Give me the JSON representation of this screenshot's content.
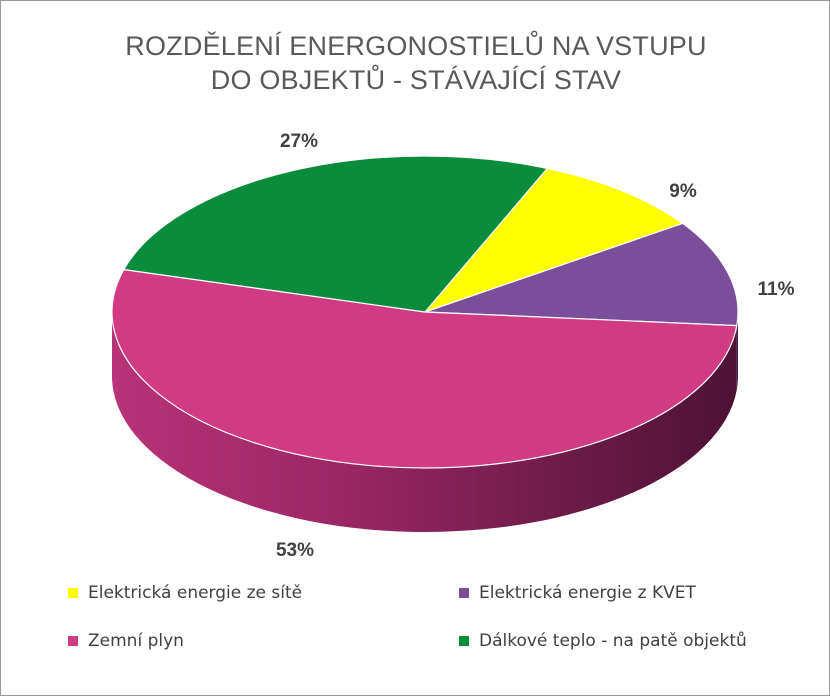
{
  "chart_data": {
    "type": "pie",
    "title_lines": [
      "ROZDĚLENÍ ENERGONOSTIELŮ NA VSTUPU",
      "DO OBJEKTŮ - STÁVAJÍCÍ STAV"
    ],
    "categories": [
      "Elektrická energie ze sítě",
      "Elektrická energie z KVET",
      "Zemní plyn",
      "Dálkové teplo - na patě objektů"
    ],
    "values": [
      9,
      11,
      53,
      27
    ],
    "data_labels": [
      "9%",
      "11%",
      "53%",
      "27%"
    ],
    "colors": [
      "#ffff00",
      "#7b4e9b",
      "#d03b84",
      "#0a8c3c"
    ],
    "legend_position": "bottom",
    "is_3d": true
  }
}
